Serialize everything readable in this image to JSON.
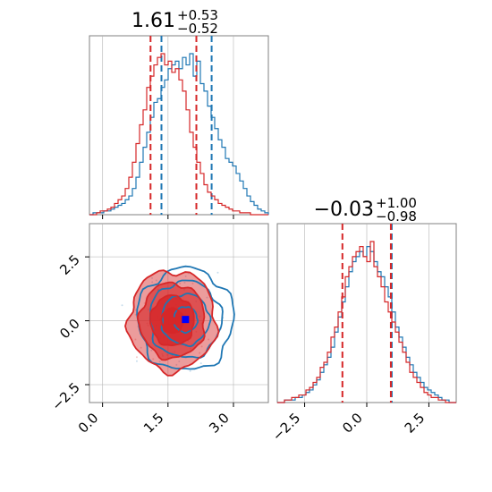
{
  "chart_data": {
    "type": "corner",
    "colors": {
      "series_a": "#1f77b4",
      "series_b": "#d62728",
      "truth": "#0000ff",
      "grid": "#b0b0b0"
    },
    "panels": [
      {
        "id": "hist_x",
        "type": "histogram",
        "title": {
          "median": "1.61",
          "plus": "+0.53",
          "minus": "−0.52"
        },
        "x_range": [
          -0.3,
          3.8
        ],
        "x_ticks": [
          0.0,
          1.5,
          3.0
        ],
        "series": [
          {
            "color": "#1f77b4",
            "quantiles": [
              1.35,
              2.5
            ],
            "bin_edges_start": -0.3,
            "bin_width": 0.082,
            "counts": [
              0,
              1,
              1,
              1,
              2,
              2,
              3,
              4,
              5,
              6,
              8,
              10,
              14,
              20,
              28,
              36,
              44,
              52,
              60,
              62,
              68,
              72,
              78,
              80,
              82,
              78,
              84,
              80,
              86,
              74,
              82,
              70,
              66,
              58,
              52,
              46,
              40,
              36,
              30,
              28,
              26,
              22,
              18,
              14,
              10,
              7,
              5,
              3,
              2,
              1
            ]
          },
          {
            "color": "#d62728",
            "quantiles": [
              1.1,
              2.15
            ],
            "bin_edges_start": -0.3,
            "bin_width": 0.082,
            "counts": [
              0,
              0,
              1,
              2,
              2,
              3,
              4,
              6,
              8,
              10,
              14,
              20,
              28,
              38,
              48,
              56,
              68,
              74,
              80,
              84,
              86,
              80,
              82,
              76,
              78,
              72,
              66,
              56,
              44,
              36,
              28,
              22,
              16,
              12,
              10,
              8,
              6,
              5,
              4,
              3,
              2,
              2,
              1,
              1,
              1,
              0,
              0,
              0,
              0,
              0
            ]
          }
        ]
      },
      {
        "id": "hist_y",
        "type": "histogram",
        "title": {
          "median": "−0.03",
          "plus": "+1.00",
          "minus": "−0.98"
        },
        "x_range": [
          -3.6,
          3.6
        ],
        "x_ticks": [
          -2.5,
          0.0,
          2.5
        ],
        "x_tick_labels": [
          "−2.5",
          "0.0",
          "2.5"
        ],
        "series": [
          {
            "color": "#1f77b4",
            "quantiles": [
              1.0,
              1.0
            ],
            "bin_edges_start": -3.6,
            "bin_width": 0.144,
            "counts": [
              0,
              0,
              1,
              1,
              1,
              2,
              2,
              3,
              4,
              5,
              7,
              9,
              12,
              15,
              18,
              22,
              28,
              34,
              40,
              46,
              52,
              56,
              58,
              60,
              58,
              62,
              60,
              56,
              52,
              50,
              46,
              42,
              36,
              30,
              26,
              22,
              18,
              15,
              12,
              10,
              8,
              6,
              5,
              4,
              3,
              2,
              1,
              1,
              0,
              0
            ]
          },
          {
            "color": "#d62728",
            "quantiles": [
              -0.98,
              0.97
            ],
            "bin_edges_start": -3.6,
            "bin_width": 0.144,
            "counts": [
              0,
              0,
              1,
              1,
              2,
              2,
              3,
              3,
              5,
              6,
              8,
              10,
              14,
              16,
              20,
              26,
              30,
              36,
              42,
              50,
              54,
              58,
              60,
              62,
              58,
              56,
              64,
              54,
              50,
              46,
              40,
              36,
              32,
              28,
              24,
              20,
              16,
              12,
              10,
              8,
              6,
              4,
              3,
              2,
              2,
              1,
              1,
              0,
              0,
              0
            ]
          }
        ]
      },
      {
        "id": "joint",
        "type": "contour",
        "x_range": [
          -0.3,
          3.8
        ],
        "y_range": [
          -3.2,
          3.8
        ],
        "x_ticks": [
          0.0,
          1.5,
          3.0
        ],
        "y_ticks": [
          -2.5,
          0.0,
          2.5
        ],
        "y_tick_labels": [
          "−2.5",
          "0.0",
          "2.5"
        ],
        "series": [
          {
            "color": "#1f77b4",
            "center": [
              1.9,
              0.05
            ],
            "sigma": [
              0.55,
              1.0
            ],
            "filled": false
          },
          {
            "color": "#d62728",
            "center": [
              1.6,
              0.0
            ],
            "sigma": [
              0.5,
              0.98
            ],
            "filled": true
          }
        ],
        "truth": [
          1.9,
          0.05
        ]
      }
    ]
  }
}
